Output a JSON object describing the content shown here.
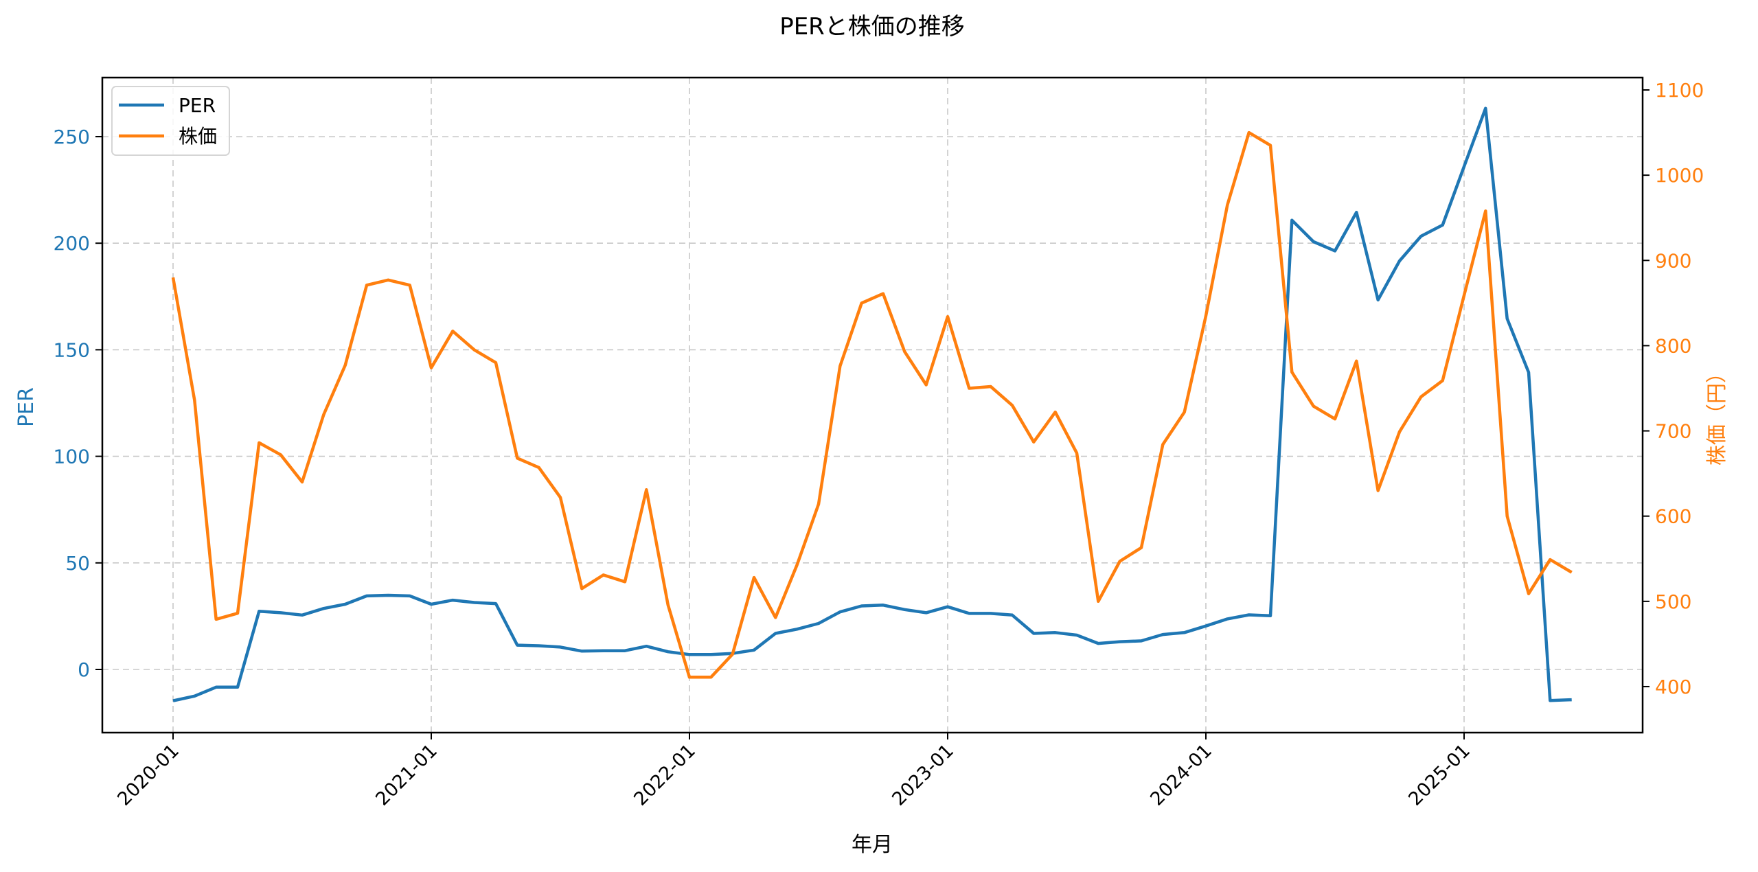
{
  "chart_data": {
    "type": "line",
    "title": "PERと株価の推移",
    "xlabel": "年月",
    "ylabel_left": "PER",
    "ylabel_right": "株価（円）",
    "x_ticks": [
      "2020-01",
      "2021-01",
      "2022-01",
      "2023-01",
      "2024-01",
      "2025-01"
    ],
    "y_left_ticks": [
      0,
      50,
      100,
      150,
      200,
      250
    ],
    "y_right_ticks": [
      400,
      500,
      600,
      700,
      800,
      900,
      1000,
      1100
    ],
    "ylim_left": [
      -29,
      277
    ],
    "ylim_right": [
      350,
      1110
    ],
    "grid": true,
    "legend_position": "upper left",
    "colors": {
      "PER": "#1f77b4",
      "株価": "#ff7f0e"
    },
    "x": [
      "2020-01",
      "2020-02",
      "2020-03",
      "2020-04",
      "2020-05",
      "2020-06",
      "2020-07",
      "2020-08",
      "2020-09",
      "2020-10",
      "2020-11",
      "2020-12",
      "2021-01",
      "2021-02",
      "2021-03",
      "2021-04",
      "2021-05",
      "2021-06",
      "2021-07",
      "2021-08",
      "2021-09",
      "2021-10",
      "2021-11",
      "2021-12",
      "2022-01",
      "2022-02",
      "2022-03",
      "2022-04",
      "2022-05",
      "2022-06",
      "2022-07",
      "2022-08",
      "2022-09",
      "2022-10",
      "2022-11",
      "2022-12",
      "2023-01",
      "2023-02",
      "2023-03",
      "2023-04",
      "2023-05",
      "2023-06",
      "2023-07",
      "2023-08",
      "2023-09",
      "2023-10",
      "2023-11",
      "2023-12",
      "2024-01",
      "2024-02",
      "2024-03",
      "2024-04",
      "2024-05",
      "2024-06",
      "2024-07",
      "2024-08",
      "2024-09",
      "2024-10",
      "2024-11",
      "2024-12",
      "2025-01",
      "2025-02",
      "2025-03",
      "2025-04",
      "2025-05",
      "2025-06"
    ],
    "series": [
      {
        "name": "PER",
        "axis": "left",
        "values": [
          -14.7,
          -12.5,
          -8.3,
          -8.3,
          27.3,
          26.6,
          25.5,
          28.6,
          30.6,
          34.5,
          34.8,
          34.5,
          30.6,
          32.5,
          31.4,
          30.9,
          11.4,
          11.1,
          10.5,
          8.6,
          8.8,
          8.8,
          10.9,
          8.3,
          7.0,
          7.0,
          7.5,
          9.1,
          16.9,
          18.9,
          21.6,
          27.0,
          29.8,
          30.2,
          28.1,
          26.6,
          29.4,
          26.3,
          26.3,
          25.5,
          16.9,
          17.3,
          16.1,
          12.2,
          13.0,
          13.4,
          16.4,
          17.3,
          20.4,
          23.7,
          25.6,
          25.2,
          210.8,
          200.7,
          196.4,
          214.5,
          173.4,
          191.7,
          203.3,
          208.5,
          236.0,
          263.3,
          164.6,
          139.4,
          -14.6,
          -14.2
        ]
      },
      {
        "name": "株価",
        "axis": "right",
        "values": [
          880,
          736,
          479,
          486,
          686,
          672,
          640,
          719,
          777,
          871,
          877,
          871,
          774,
          817,
          795,
          780,
          668,
          657,
          622,
          515,
          531,
          523,
          631,
          496,
          411,
          411,
          438,
          528,
          481,
          543,
          614,
          776,
          850,
          861,
          793,
          754,
          834,
          750,
          752,
          730,
          687,
          722,
          674,
          500,
          547,
          563,
          684,
          722,
          835,
          965,
          1050,
          1035,
          769,
          729,
          714,
          782,
          630,
          699,
          740,
          759,
          859,
          958,
          600,
          509,
          549,
          534
        ]
      }
    ]
  },
  "legend": {
    "items": [
      {
        "label": "PER",
        "color": "#1f77b4"
      },
      {
        "label": "株価",
        "color": "#ff7f0e"
      }
    ]
  }
}
